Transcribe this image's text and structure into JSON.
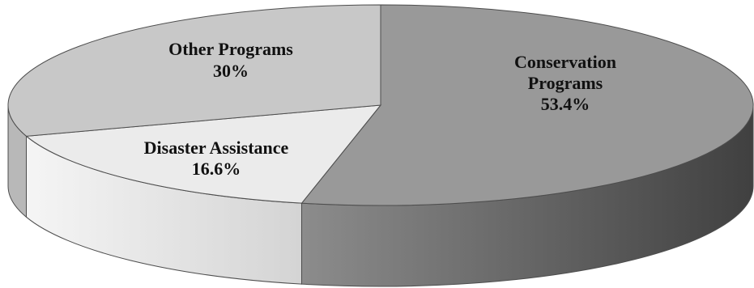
{
  "chart_data": {
    "type": "pie",
    "style": "3d",
    "title": "",
    "slices": [
      {
        "name": "Conservation Programs",
        "value": 53.4,
        "label_lines": [
          "Conservation",
          "Programs",
          "53.4%"
        ],
        "color": "#999999"
      },
      {
        "name": "Disaster Assistance",
        "value": 16.6,
        "label_lines": [
          "Disaster Assistance",
          "16.6%"
        ],
        "color": "#ebebeb"
      },
      {
        "name": "Other Programs",
        "value": 30,
        "label_lines": [
          "Other Programs",
          "30%"
        ],
        "color": "#c8c8c8"
      }
    ]
  },
  "colors": {
    "outline": "#4d4d4d",
    "conservation_side_light": "#8c8c8c",
    "conservation_side_dark": "#404040",
    "disaster_side_light": "#f5f5f5",
    "disaster_side_dark": "#d4d4d4",
    "other_side": "#b8b8b8"
  }
}
